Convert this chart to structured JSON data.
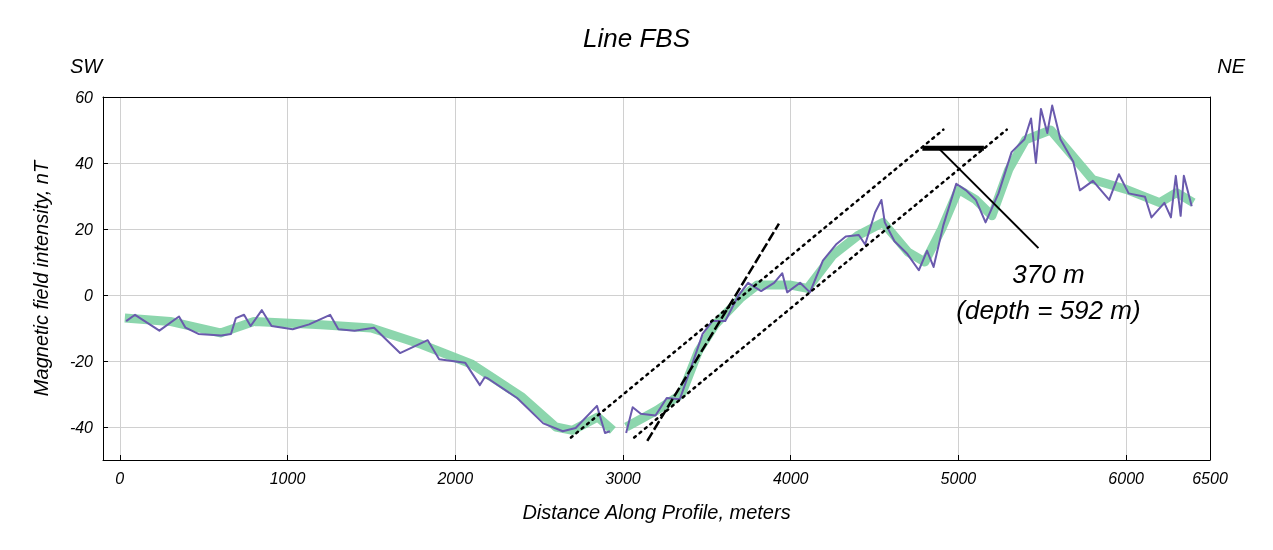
{
  "chart_data": {
    "type": "line",
    "title": "Line FBS",
    "xlabel": "Distance Along Profile, meters",
    "ylabel": "Magnetic field intensity, nT",
    "annotations": [
      "SW",
      "NE",
      {
        "text": "370 m\n(depth = 592 m)",
        "x": 4881,
        "y": 44.5
      }
    ],
    "xlim": [
      -100,
      6500
    ],
    "xticks": [
      0,
      1000,
      2000,
      3000,
      4000,
      5000,
      6000,
      6500
    ],
    "ylim": [
      -50,
      60
    ],
    "yticks": [
      -40,
      -20,
      0,
      20,
      40,
      60
    ],
    "grid": true,
    "marker": "none",
    "series": [
      {
        "color": "#80d2a4",
        "x": [
          30,
          300,
          600,
          800,
          1200,
          1500,
          1800,
          2100,
          2400,
          2600,
          2700,
          2850,
          2940,
          2980,
          3020,
          3200,
          3350,
          3450,
          3550,
          3700,
          3800,
          4000,
          4100,
          4250,
          4400,
          4550,
          4700,
          4800,
          4900,
          5000,
          5100,
          5200,
          5300,
          5400,
          5550,
          5700,
          5800,
          6000,
          6200,
          6300,
          6400
        ],
        "values": [
          -7,
          -8,
          -11.5,
          -8,
          -9,
          -10,
          -15,
          -21,
          -31,
          -40,
          -41,
          -37,
          -41,
          null,
          -40,
          -35,
          -30,
          -17,
          -9,
          -1,
          3,
          3,
          2,
          12,
          18,
          22,
          13,
          10,
          20,
          32,
          29,
          24,
          38,
          47,
          50,
          41,
          35,
          32,
          28,
          31,
          28
        ]
      },
      {
        "color": "#6a5aad",
        "x": [
          38,
          91,
          236,
          353,
          392,
          469,
          605,
          663,
          692,
          741,
          780,
          847,
          905,
          1031,
          1129,
          1254,
          1303,
          1400,
          1516,
          1671,
          1836,
          1904,
          2059,
          2147,
          2176,
          2195,
          2369,
          2525,
          2641,
          2718,
          2845,
          2893,
          2922,
          2970,
          3019,
          3058,
          3106,
          3194,
          3261,
          3339,
          3416,
          3475,
          3533,
          3610,
          3688,
          3746,
          3824,
          3901,
          3950,
          3979,
          4056,
          4115,
          4192,
          4270,
          4328,
          4406,
          4444,
          4503,
          4541,
          4561,
          4619,
          4696,
          4764,
          4813,
          4852,
          4910,
          4987,
          5046,
          5104,
          5162,
          5239,
          5317,
          5394,
          5433,
          5462,
          5492,
          5530,
          5559,
          5608,
          5685,
          5724,
          5802,
          5899,
          5957,
          6015,
          6112,
          6151,
          6228,
          6267,
          6296,
          6325,
          6344,
          6391
        ],
        "values": [
          -7.9,
          -6,
          -10.8,
          -6.5,
          -9.9,
          -11.8,
          -12.3,
          -11.8,
          -7,
          -6,
          -9.4,
          -4.6,
          -9.4,
          -10.4,
          -8.9,
          -6,
          -10.4,
          -10.8,
          -9.9,
          -17.6,
          -13.7,
          -19.5,
          -20.5,
          -27.3,
          -24.9,
          -25.3,
          -31.2,
          -38.9,
          -41.3,
          -40.3,
          -33.6,
          -41.8,
          -41.3,
          null,
          -41.8,
          -34,
          -36,
          -36.5,
          -31.2,
          -31.6,
          -20.5,
          -11.8,
          -7.9,
          -7.9,
          -0.2,
          3.7,
          1.2,
          3.7,
          6.6,
          0.8,
          3.7,
          0.8,
          10.4,
          15.3,
          17.7,
          18.2,
          15.3,
          25,
          28.8,
          22,
          16.3,
          12.4,
          7.5,
          13.4,
          8.5,
          21.1,
          33.7,
          31.7,
          28.8,
          22,
          30.8,
          43.3,
          47.2,
          53.5,
          40,
          56.4,
          49.1,
          57.4,
          47.2,
          40.4,
          31.7,
          34.6,
          28.8,
          36.6,
          30.8,
          29.8,
          23.5,
          27.9,
          23.5,
          36.1,
          24,
          36.1,
          26.9
        ]
      },
      {
        "color": "#000000",
        "line_style": "dotted",
        "x": [
          2690,
          4910
        ],
        "values": [
          -43.2,
          50.1
        ]
      },
      {
        "color": "#000000",
        "line_style": "dotted",
        "x": [
          3067,
          5288
        ],
        "values": [
          -43.2,
          50.1
        ]
      },
      {
        "color": "#000000",
        "line_style": "dashed",
        "x": [
          3145,
          3930
        ],
        "values": [
          -44.2,
          21.6
        ]
      },
      {
        "color": "#000000",
        "x": [
          4785,
          5152
        ],
        "values": [
          44.5,
          44.5
        ]
      }
    ]
  }
}
